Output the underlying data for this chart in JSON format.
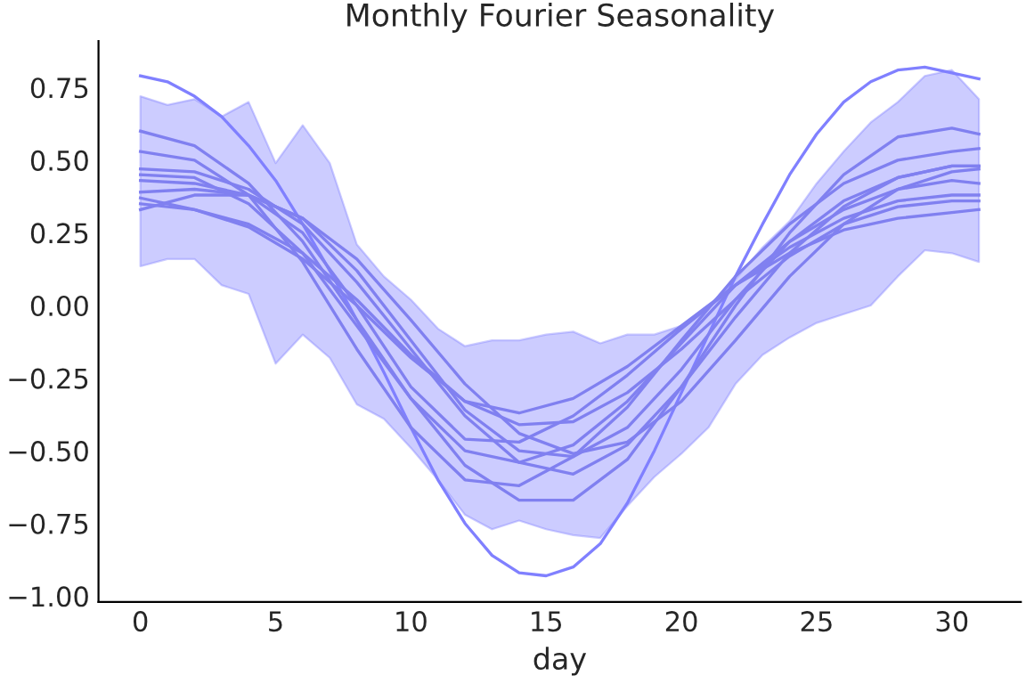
{
  "chart_data": {
    "type": "line",
    "title": "Monthly Fourier Seasonality",
    "xlabel": "day",
    "xlim": [
      -1.55,
      32.55
    ],
    "ylim": [
      -1.02,
      0.91
    ],
    "xticks": [
      0,
      5,
      10,
      15,
      20,
      25,
      30
    ],
    "yticks": [
      {
        "value": -1,
        "label": "−1.00"
      },
      {
        "value": -0.75,
        "label": "−0.75"
      },
      {
        "value": -0.5,
        "label": "−0.50"
      },
      {
        "value": -0.25,
        "label": "−0.25"
      },
      {
        "value": 0,
        "label": "0.00"
      },
      {
        "value": 0.25,
        "label": "0.25"
      },
      {
        "value": 0.5,
        "label": "0.50"
      },
      {
        "value": 0.75,
        "label": "0.75"
      }
    ],
    "grid": false,
    "marker": "none",
    "line_style": "solid",
    "series": [
      {
        "color": "#8080ff",
        "x": [
          0,
          1,
          2,
          3,
          4,
          5,
          6,
          7,
          8,
          9,
          10,
          11,
          12,
          13,
          14,
          15,
          16,
          17,
          18,
          19,
          20,
          21,
          22,
          23,
          24,
          25,
          26,
          27,
          28,
          29,
          30,
          31
        ],
        "values": [
          0.79,
          0.77,
          0.72,
          0.65,
          0.55,
          0.43,
          0.28,
          0.12,
          -0.05,
          -0.23,
          -0.42,
          -0.6,
          -0.75,
          -0.86,
          -0.92,
          -0.93,
          -0.9,
          -0.82,
          -0.68,
          -0.5,
          -0.3,
          -0.1,
          0.1,
          0.28,
          0.45,
          0.59,
          0.7,
          0.77,
          0.81,
          0.82,
          0.8,
          0.78
        ],
        "lower": [
          0.135,
          0.16,
          0.16,
          0.07,
          0.04,
          -0.2,
          -0.1,
          -0.18,
          -0.34,
          -0.39,
          -0.49,
          -0.6,
          -0.72,
          -0.77,
          -0.74,
          -0.77,
          -0.79,
          -0.8,
          -0.69,
          -0.59,
          -0.51,
          -0.42,
          -0.27,
          -0.17,
          -0.11,
          -0.06,
          -0.03,
          0.0,
          0.1,
          0.19,
          0.18,
          0.15
        ],
        "upper": [
          0.72,
          0.69,
          0.71,
          0.65,
          0.7,
          0.49,
          0.62,
          0.49,
          0.21,
          0.1,
          0.02,
          -0.08,
          -0.14,
          -0.12,
          -0.12,
          -0.1,
          -0.09,
          -0.13,
          -0.1,
          -0.1,
          -0.07,
          -0.01,
          0.09,
          0.2,
          0.29,
          0.42,
          0.53,
          0.63,
          0.7,
          0.79,
          0.81,
          0.71
        ]
      },
      {
        "color": "#8080f0",
        "x": [
          0,
          2,
          4,
          6,
          8,
          10,
          12,
          14,
          16,
          18,
          20,
          22,
          24,
          26,
          28,
          30,
          31
        ],
        "values": [
          0.6,
          0.55,
          0.42,
          0.22,
          -0.05,
          -0.32,
          -0.55,
          -0.67,
          -0.67,
          -0.53,
          -0.28,
          0.0,
          0.25,
          0.45,
          0.58,
          0.61,
          0.59
        ]
      },
      {
        "color": "#8080f0",
        "x": [
          0,
          2,
          4,
          6,
          8,
          10,
          12,
          14,
          16,
          18,
          20,
          22,
          24,
          26,
          28,
          30,
          31
        ],
        "values": [
          0.53,
          0.5,
          0.38,
          0.15,
          -0.15,
          -0.42,
          -0.6,
          -0.62,
          -0.52,
          -0.35,
          -0.12,
          0.1,
          0.28,
          0.42,
          0.5,
          0.53,
          0.54
        ]
      },
      {
        "color": "#8080f0",
        "x": [
          0,
          2,
          4,
          6,
          8,
          10,
          12,
          14,
          16,
          18,
          20,
          22,
          24,
          26,
          28,
          30,
          31
        ],
        "values": [
          0.47,
          0.46,
          0.4,
          0.28,
          0.08,
          -0.15,
          -0.38,
          -0.54,
          -0.58,
          -0.48,
          -0.28,
          -0.04,
          0.18,
          0.34,
          0.44,
          0.48,
          0.48
        ]
      },
      {
        "color": "#8080f0",
        "x": [
          0,
          2,
          4,
          6,
          8,
          10,
          12,
          14,
          16,
          18,
          20,
          22,
          24,
          26,
          28,
          30,
          31
        ],
        "values": [
          0.45,
          0.44,
          0.35,
          0.18,
          -0.07,
          -0.32,
          -0.5,
          -0.54,
          -0.48,
          -0.33,
          -0.13,
          0.07,
          0.22,
          0.33,
          0.4,
          0.43,
          0.42
        ]
      },
      {
        "color": "#8080f0",
        "x": [
          0,
          2,
          4,
          6,
          8,
          10,
          12,
          14,
          16,
          18,
          20,
          22,
          24,
          26,
          28,
          30,
          31
        ],
        "values": [
          0.43,
          0.42,
          0.38,
          0.3,
          0.16,
          -0.05,
          -0.27,
          -0.44,
          -0.51,
          -0.47,
          -0.33,
          -0.12,
          0.1,
          0.28,
          0.4,
          0.46,
          0.47
        ]
      },
      {
        "color": "#8080f0",
        "x": [
          0,
          2,
          4,
          6,
          8,
          10,
          12,
          14,
          16,
          18,
          20,
          22,
          24,
          26,
          28,
          30,
          31
        ],
        "values": [
          0.39,
          0.4,
          0.38,
          0.25,
          0.0,
          -0.28,
          -0.46,
          -0.47,
          -0.38,
          -0.24,
          -0.08,
          0.07,
          0.2,
          0.3,
          0.36,
          0.38,
          0.38
        ]
      },
      {
        "color": "#8080f0",
        "x": [
          0,
          2,
          4,
          6,
          8,
          10,
          12,
          14,
          16,
          18,
          20,
          22,
          24,
          26,
          28,
          30,
          31
        ],
        "values": [
          0.37,
          0.33,
          0.27,
          0.16,
          0.0,
          -0.18,
          -0.33,
          -0.41,
          -0.4,
          -0.3,
          -0.15,
          0.02,
          0.17,
          0.28,
          0.34,
          0.36,
          0.36
        ]
      },
      {
        "color": "#8080f0",
        "x": [
          0,
          2,
          4,
          6,
          8,
          10,
          12,
          14,
          16,
          18,
          20,
          22,
          24,
          26,
          28,
          30,
          31
        ],
        "values": [
          0.35,
          0.33,
          0.28,
          0.18,
          0.02,
          -0.17,
          -0.33,
          -0.37,
          -0.32,
          -0.21,
          -0.07,
          0.07,
          0.18,
          0.26,
          0.3,
          0.32,
          0.33
        ]
      },
      {
        "color": "#8080f0",
        "x": [
          0,
          2,
          4,
          6,
          8,
          10,
          12,
          14,
          16,
          18,
          20,
          22,
          24,
          26,
          28,
          30,
          31
        ],
        "values": [
          0.33,
          0.38,
          0.38,
          0.3,
          0.12,
          -0.12,
          -0.36,
          -0.5,
          -0.52,
          -0.42,
          -0.22,
          0.02,
          0.22,
          0.36,
          0.44,
          0.48,
          0.48
        ]
      }
    ]
  }
}
